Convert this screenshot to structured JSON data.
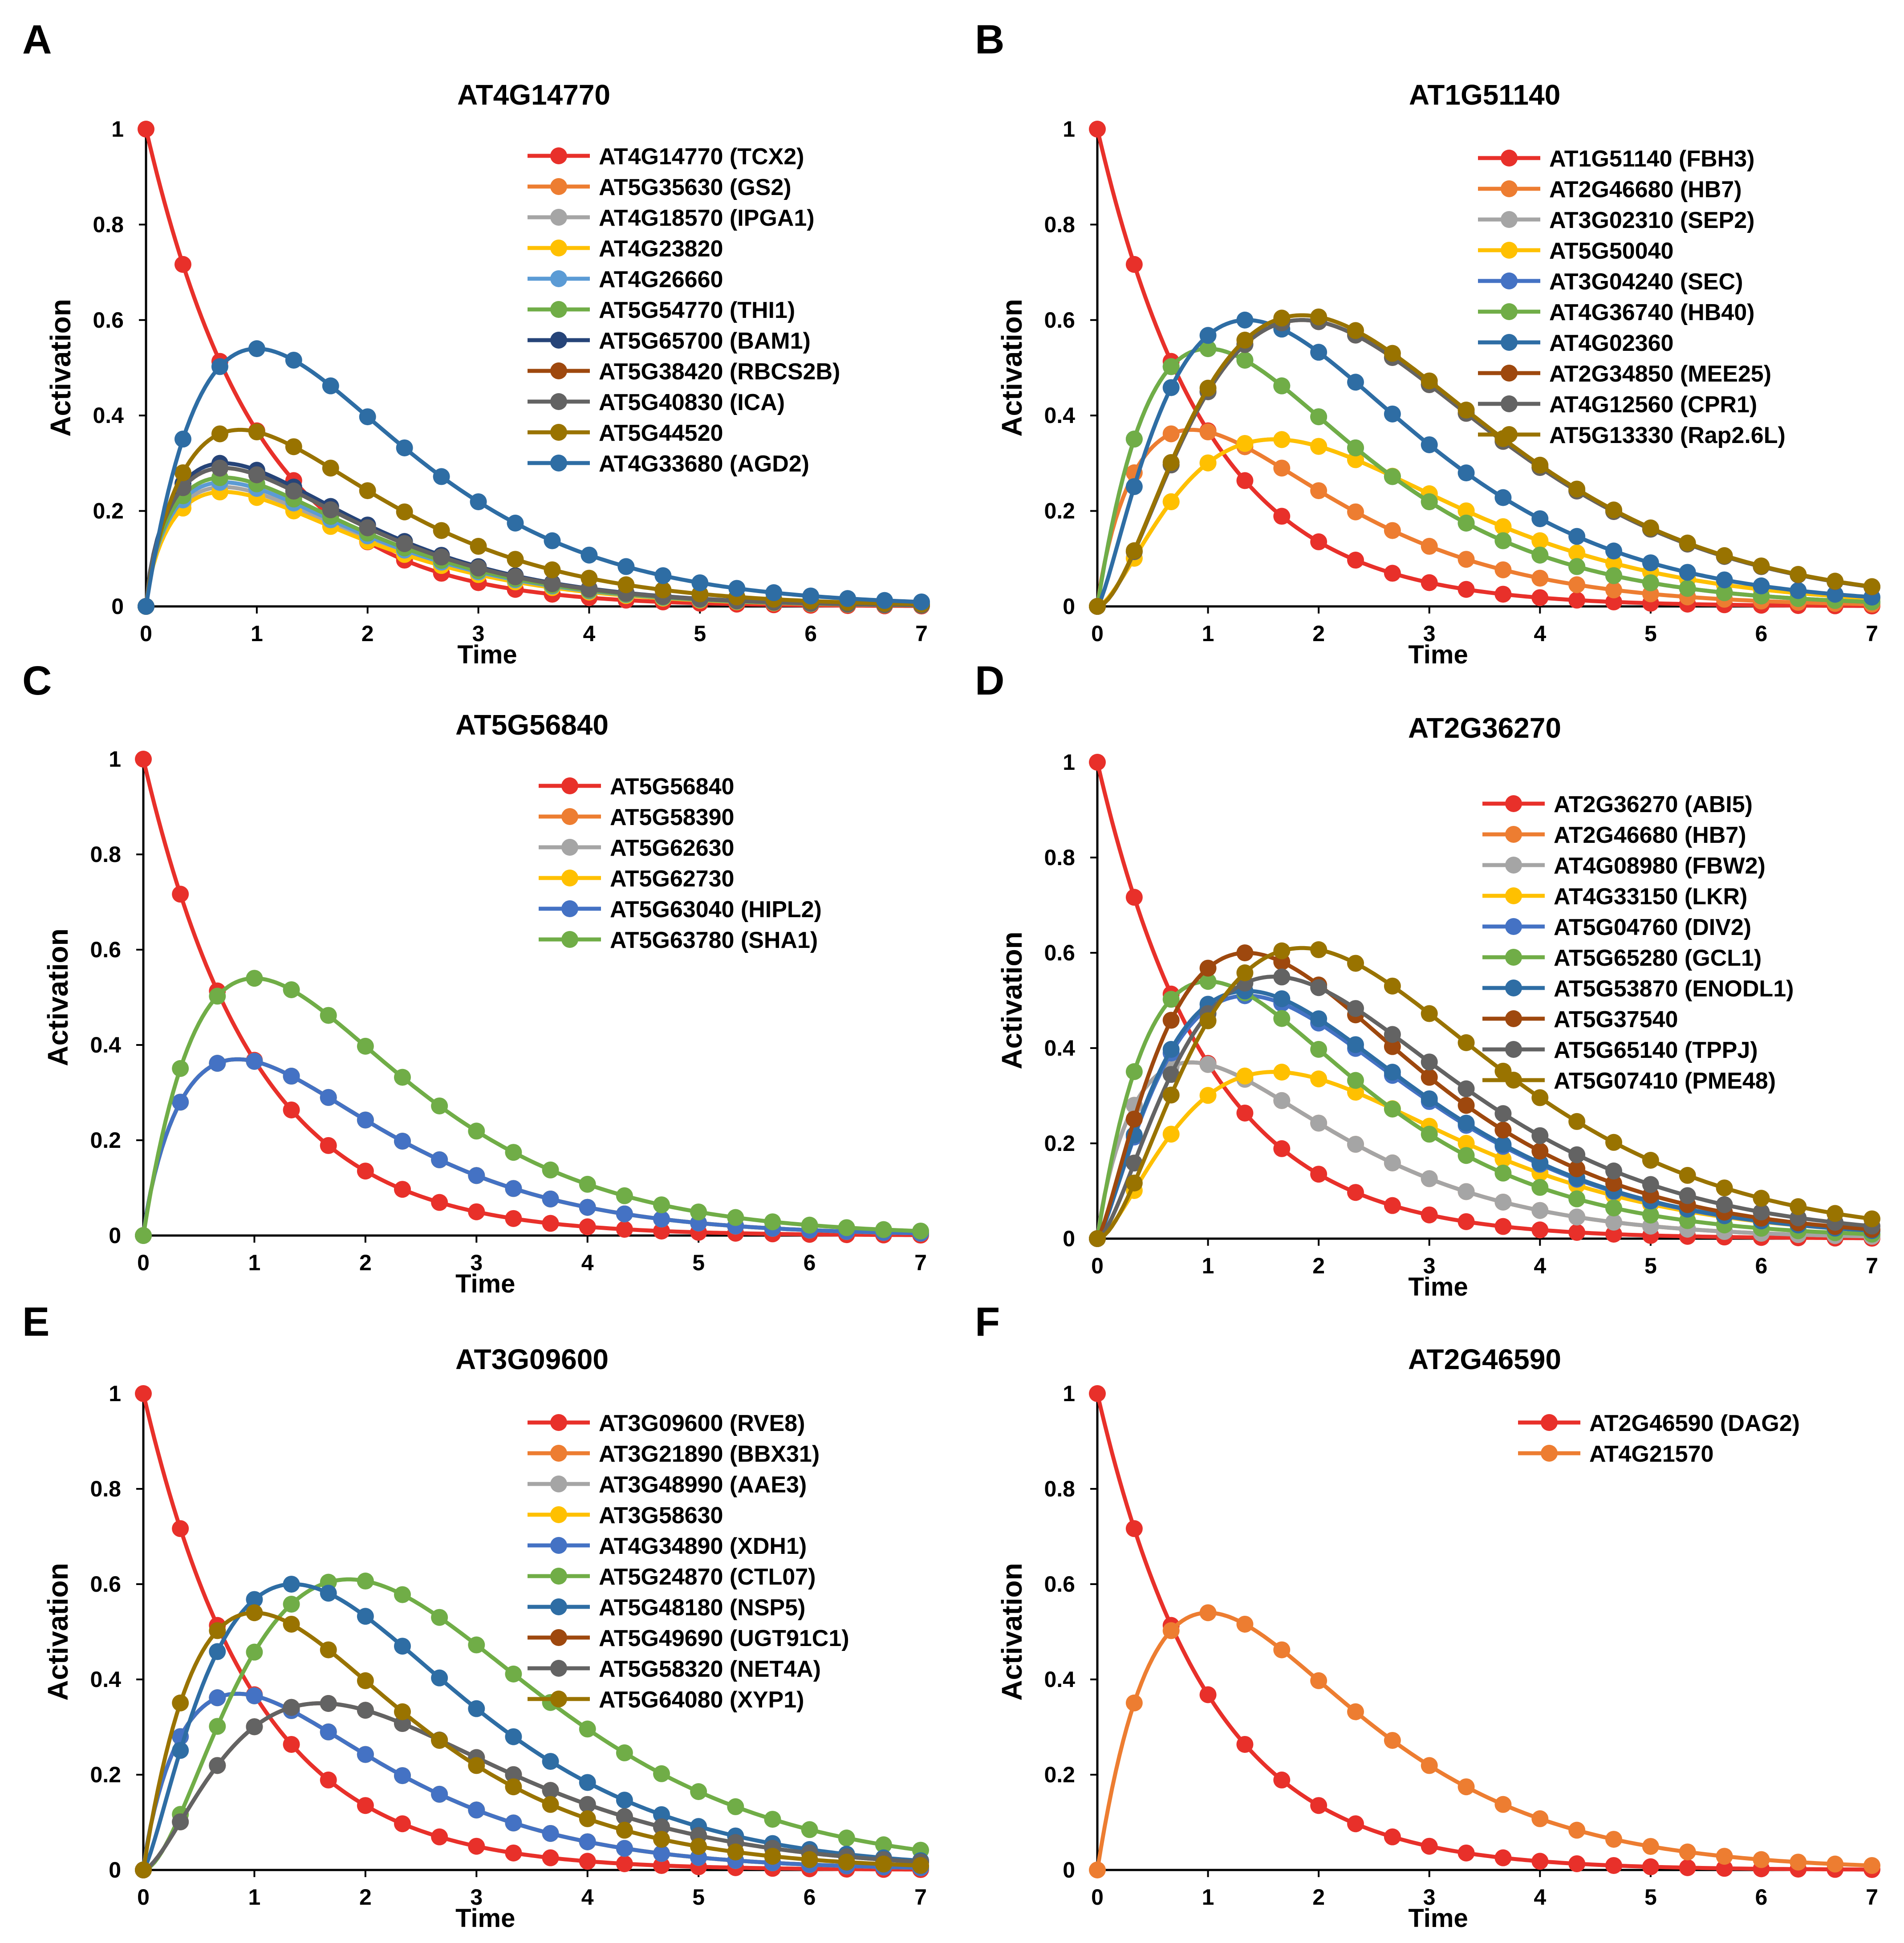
{
  "figure": {
    "panel_letters": [
      "A",
      "B",
      "C",
      "D",
      "E",
      "F"
    ],
    "xlabel": "Time",
    "ylabel": "Activation"
  },
  "chart_data": [
    {
      "type": "line",
      "panel": "A",
      "title": "AT4G14770",
      "xlabel": "Time",
      "ylabel": "Activation",
      "xlim": [
        0,
        7
      ],
      "ylim": [
        0,
        1
      ],
      "xticks": [
        0,
        1,
        2,
        3,
        4,
        5,
        6,
        7
      ],
      "yticks": [
        0,
        0.2,
        0.4,
        0.6,
        0.8,
        1
      ],
      "legend": "top-right",
      "series": [
        {
          "name": "AT4G14770 (TCX2)",
          "color": "#e8302a",
          "peak": 1.0,
          "tpeak": 0
        },
        {
          "name": "AT5G35630 (GS2)",
          "color": "#ed7d31",
          "peak": 0.26,
          "tpeak": 0.7
        },
        {
          "name": "AT4G18570 (IPGA1)",
          "color": "#a5a5a5",
          "peak": 0.25,
          "tpeak": 0.7
        },
        {
          "name": "AT4G23820",
          "color": "#ffc000",
          "peak": 0.24,
          "tpeak": 0.7
        },
        {
          "name": "AT4G26660",
          "color": "#5b9bd5",
          "peak": 0.26,
          "tpeak": 0.7
        },
        {
          "name": "AT5G54770 (THI1)",
          "color": "#70ad47",
          "peak": 0.27,
          "tpeak": 0.7
        },
        {
          "name": "AT5G65700 (BAM1)",
          "color": "#264478",
          "peak": 0.3,
          "tpeak": 0.7
        },
        {
          "name": "AT5G38420 (RBCS2B)",
          "color": "#9e480e",
          "peak": 0.29,
          "tpeak": 0.7
        },
        {
          "name": "AT5G40830 (ICA)",
          "color": "#636363",
          "peak": 0.29,
          "tpeak": 0.7
        },
        {
          "name": "AT5G44520",
          "color": "#997300",
          "peak": 0.37,
          "tpeak": 0.85
        },
        {
          "name": "AT4G33680 (AGD2)",
          "color": "#2e6da4",
          "peak": 0.54,
          "tpeak": 1.0
        }
      ]
    },
    {
      "type": "line",
      "panel": "B",
      "title": "AT1G51140",
      "xlabel": "Time",
      "ylabel": "Activation",
      "xlim": [
        0,
        7
      ],
      "ylim": [
        0,
        1
      ],
      "xticks": [
        0,
        1,
        2,
        3,
        4,
        5,
        6,
        7
      ],
      "yticks": [
        0,
        0.2,
        0.4,
        0.6,
        0.8,
        1
      ],
      "legend": "top-right",
      "series": [
        {
          "name": "AT1G51140 (FBH3)",
          "color": "#e8302a",
          "peak": 1.0,
          "tpeak": 0
        },
        {
          "name": "AT2G46680 (HB7)",
          "color": "#ed7d31",
          "peak": 0.37,
          "tpeak": 0.85
        },
        {
          "name": "AT3G02310 (SEP2)",
          "color": "#a5a5a5",
          "peak": 0.35,
          "tpeak": 1.6
        },
        {
          "name": "AT5G50040",
          "color": "#ffc000",
          "peak": 0.35,
          "tpeak": 1.6
        },
        {
          "name": "AT3G04240 (SEC)",
          "color": "#4472c4",
          "peak": 0.54,
          "tpeak": 1.0
        },
        {
          "name": "AT4G36740 (HB40)",
          "color": "#70ad47",
          "peak": 0.54,
          "tpeak": 1.0
        },
        {
          "name": "AT4G02360",
          "color": "#2e6da4",
          "peak": 0.6,
          "tpeak": 1.35
        },
        {
          "name": "AT2G34850 (MEE25)",
          "color": "#9e480e",
          "peak": 0.6,
          "tpeak": 1.85
        },
        {
          "name": "AT4G12560 (CPR1)",
          "color": "#636363",
          "peak": 0.6,
          "tpeak": 1.85
        },
        {
          "name": "AT5G13330 (Rap2.6L)",
          "color": "#997300",
          "peak": 0.61,
          "tpeak": 1.85
        }
      ]
    },
    {
      "type": "line",
      "panel": "C",
      "title": "AT5G56840",
      "xlabel": "Time",
      "ylabel": "Activation",
      "xlim": [
        0,
        7
      ],
      "ylim": [
        0,
        1
      ],
      "xticks": [
        0,
        1,
        2,
        3,
        4,
        5,
        6,
        7
      ],
      "yticks": [
        0,
        0.2,
        0.4,
        0.6,
        0.8,
        1
      ],
      "legend": "top-right",
      "series": [
        {
          "name": "AT5G56840",
          "color": "#e8302a",
          "peak": 1.0,
          "tpeak": 0
        },
        {
          "name": "AT5G58390",
          "color": "#ed7d31",
          "peak": 0.37,
          "tpeak": 0.85
        },
        {
          "name": "AT5G62630",
          "color": "#a5a5a5",
          "peak": 0.37,
          "tpeak": 0.85
        },
        {
          "name": "AT5G62730",
          "color": "#ffc000",
          "peak": 0.37,
          "tpeak": 0.85
        },
        {
          "name": "AT5G63040 (HIPL2)",
          "color": "#4472c4",
          "peak": 0.37,
          "tpeak": 0.85
        },
        {
          "name": "AT5G63780 (SHA1)",
          "color": "#70ad47",
          "peak": 0.54,
          "tpeak": 1.0
        }
      ]
    },
    {
      "type": "line",
      "panel": "D",
      "title": "AT2G36270",
      "xlabel": "Time",
      "ylabel": "Activation",
      "xlim": [
        0,
        7
      ],
      "ylim": [
        0,
        1
      ],
      "xticks": [
        0,
        1,
        2,
        3,
        4,
        5,
        6,
        7
      ],
      "yticks": [
        0,
        0.2,
        0.4,
        0.6,
        0.8,
        1
      ],
      "legend": "top-right",
      "series": [
        {
          "name": "AT2G36270 (ABI5)",
          "color": "#e8302a",
          "peak": 1.0,
          "tpeak": 0
        },
        {
          "name": "AT2G46680 (HB7)",
          "color": "#ed7d31",
          "peak": 0.37,
          "tpeak": 0.85
        },
        {
          "name": "AT4G08980 (FBW2)",
          "color": "#a5a5a5",
          "peak": 0.37,
          "tpeak": 0.85
        },
        {
          "name": "AT4G33150 (LKR)",
          "color": "#ffc000",
          "peak": 0.35,
          "tpeak": 1.6
        },
        {
          "name": "AT5G04760 (DIV2)",
          "color": "#4472c4",
          "peak": 0.51,
          "tpeak": 1.35
        },
        {
          "name": "AT5G65280 (GCL1)",
          "color": "#70ad47",
          "peak": 0.54,
          "tpeak": 1.0
        },
        {
          "name": "AT5G53870 (ENODL1)",
          "color": "#2e6da4",
          "peak": 0.52,
          "tpeak": 1.35
        },
        {
          "name": "AT5G37540",
          "color": "#9e480e",
          "peak": 0.6,
          "tpeak": 1.35
        },
        {
          "name": "AT5G65140 (TPPJ)",
          "color": "#636363",
          "peak": 0.55,
          "tpeak": 1.6
        },
        {
          "name": "AT5G07410 (PME48)",
          "color": "#997300",
          "peak": 0.61,
          "tpeak": 1.85
        }
      ]
    },
    {
      "type": "line",
      "panel": "E",
      "title": "AT3G09600",
      "xlabel": "Time",
      "ylabel": "Activation",
      "xlim": [
        0,
        7
      ],
      "ylim": [
        0,
        1
      ],
      "xticks": [
        0,
        1,
        2,
        3,
        4,
        5,
        6,
        7
      ],
      "yticks": [
        0,
        0.2,
        0.4,
        0.6,
        0.8,
        1
      ],
      "legend": "top-right",
      "series": [
        {
          "name": "AT3G09600 (RVE8)",
          "color": "#e8302a",
          "peak": 1.0,
          "tpeak": 0
        },
        {
          "name": "AT3G21890 (BBX31)",
          "color": "#ed7d31",
          "peak": 0.37,
          "tpeak": 0.85
        },
        {
          "name": "AT3G48990 (AAE3)",
          "color": "#a5a5a5",
          "peak": 0.37,
          "tpeak": 0.85
        },
        {
          "name": "AT3G58630",
          "color": "#ffc000",
          "peak": 0.37,
          "tpeak": 0.85
        },
        {
          "name": "AT4G34890 (XDH1)",
          "color": "#4472c4",
          "peak": 0.37,
          "tpeak": 0.85
        },
        {
          "name": "AT5G24870 (CTL07)",
          "color": "#70ad47",
          "peak": 0.61,
          "tpeak": 1.85
        },
        {
          "name": "AT5G48180 (NSP5)",
          "color": "#2e6da4",
          "peak": 0.6,
          "tpeak": 1.35
        },
        {
          "name": "AT5G49690 (UGT91C1)",
          "color": "#9e480e",
          "peak": 0.35,
          "tpeak": 1.6
        },
        {
          "name": "AT5G58320 (NET4A)",
          "color": "#636363",
          "peak": 0.35,
          "tpeak": 1.6
        },
        {
          "name": "AT5G64080 (XYP1)",
          "color": "#997300",
          "peak": 0.54,
          "tpeak": 1.0
        }
      ]
    },
    {
      "type": "line",
      "panel": "F",
      "title": "AT2G46590",
      "xlabel": "Time",
      "ylabel": "Activation",
      "xlim": [
        0,
        7
      ],
      "ylim": [
        0,
        1
      ],
      "xticks": [
        0,
        1,
        2,
        3,
        4,
        5,
        6,
        7
      ],
      "yticks": [
        0,
        0.2,
        0.4,
        0.6,
        0.8,
        1
      ],
      "legend": "top-right",
      "series": [
        {
          "name": "AT2G46590 (DAG2)",
          "color": "#e8302a",
          "peak": 1.0,
          "tpeak": 0
        },
        {
          "name": "AT4G21570",
          "color": "#ed7d31",
          "peak": 0.54,
          "tpeak": 1.0
        }
      ]
    }
  ]
}
